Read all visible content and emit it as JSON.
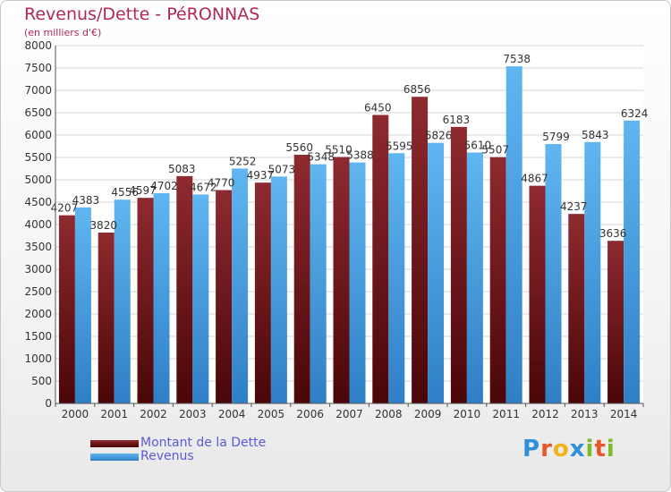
{
  "chart_data": {
    "type": "bar",
    "title": "Revenus/Dette - PéRONNAS",
    "subtitle": "(en milliers d'€)",
    "categories": [
      "2000",
      "2001",
      "2002",
      "2003",
      "2004",
      "2005",
      "2006",
      "2007",
      "2008",
      "2009",
      "2010",
      "2011",
      "2012",
      "2013",
      "2014"
    ],
    "series": [
      {
        "name": "Montant de la Dette",
        "color": "#7a1a1e",
        "values": [
          4207,
          3820,
          4597,
          5083,
          4770,
          4937,
          5560,
          5510,
          6450,
          6856,
          6183,
          5507,
          4867,
          4237,
          3636
        ],
        "labels": [
          "4207",
          "3820",
          "4597",
          "5083",
          "4770",
          "4937",
          "5560",
          "5510",
          "6450",
          "6856",
          "6183",
          "5507",
          "4867",
          "4237",
          "3636"
        ]
      },
      {
        "name": "Revenus",
        "color": "#4da6e8",
        "values": [
          4383,
          4556,
          4702,
          4672,
          5252,
          5073,
          5348,
          5388,
          5595,
          5826,
          5610,
          7538,
          5799,
          5843,
          6324
        ],
        "labels": [
          "4383",
          "4556",
          "4702",
          "4672",
          "5252",
          "5073",
          "5348",
          "5388",
          "5595",
          "5826",
          "5610",
          "7538",
          "5799",
          "5843",
          "6324"
        ]
      }
    ],
    "yticks": [
      "0",
      "500",
      "1000",
      "1500",
      "2000",
      "2500",
      "3000",
      "3500",
      "4000",
      "4500",
      "5000",
      "5500",
      "6000",
      "6500",
      "7000",
      "7500",
      "8000"
    ],
    "ylim": [
      0,
      8000
    ],
    "grid": true,
    "legend": "bottom-left"
  },
  "logo": {
    "letters": [
      {
        "ch": "P",
        "color": "#2f8fd8"
      },
      {
        "ch": "r",
        "color": "#e8572a"
      },
      {
        "ch": "o",
        "color": "#f2b21a"
      },
      {
        "ch": "x",
        "color": "#2f8fd8"
      },
      {
        "ch": "i",
        "color": "#7dbb2c"
      },
      {
        "ch": "t",
        "color": "#e8572a"
      },
      {
        "ch": "i",
        "color": "#7dbb2c"
      }
    ]
  }
}
